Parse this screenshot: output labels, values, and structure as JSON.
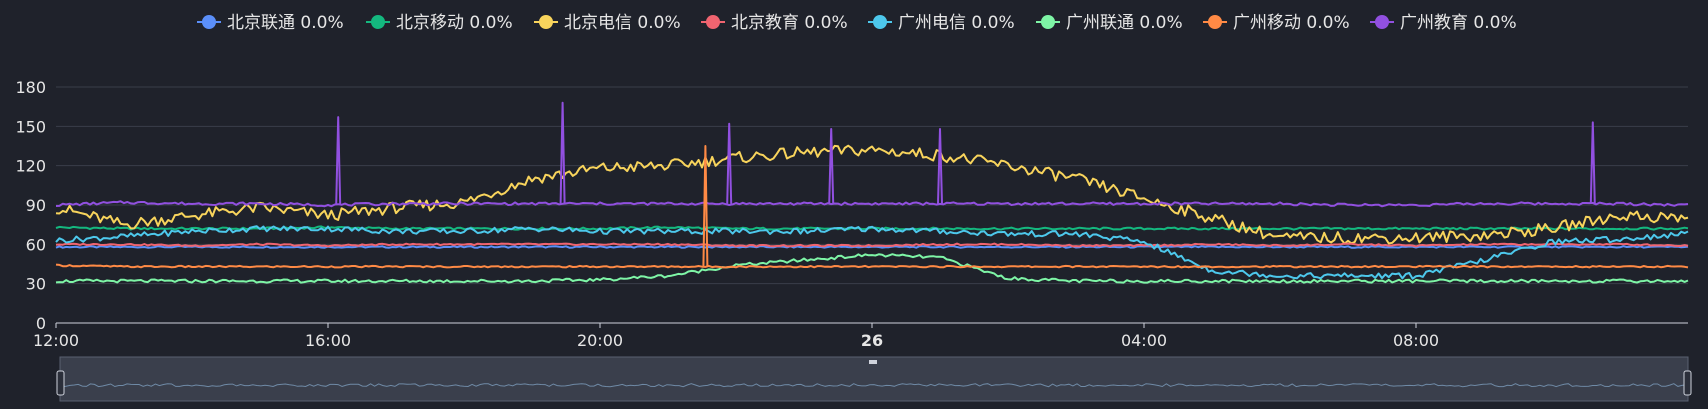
{
  "colors": {
    "background": "#1f222b",
    "grid": "#3a3e4a",
    "slider_bg": "#3a3f4c",
    "slider_line": "#6f8aa6"
  },
  "chart_data": {
    "type": "line",
    "title": "",
    "xlabel": "",
    "ylabel": "",
    "ylim": [
      0,
      180
    ],
    "y_ticks": [
      "0",
      "30",
      "60",
      "90",
      "120",
      "150",
      "180"
    ],
    "x_ticks": [
      "12:00",
      "16:00",
      "20:00",
      "26",
      "04:00",
      "08:00"
    ],
    "x_range_hours": [
      0,
      24
    ],
    "grid": true,
    "legend_position": "top-center",
    "x": [
      0,
      1,
      2,
      3,
      4,
      5,
      6,
      7,
      8,
      9,
      10,
      11,
      12,
      13,
      14,
      15,
      16,
      17,
      18,
      19,
      20,
      21,
      22,
      23,
      24
    ],
    "series": [
      {
        "name": "北京联通 0.0%",
        "color": "#5b8ff9",
        "values": [
          58,
          58,
          58,
          58,
          58,
          58,
          58,
          58,
          58,
          58,
          58,
          58,
          58,
          58,
          58,
          58,
          58,
          58,
          58,
          58,
          58,
          58,
          58,
          58,
          58
        ]
      },
      {
        "name": "北京移动 0.0%",
        "color": "#14b87f",
        "values": [
          73,
          72,
          72,
          72,
          73,
          72,
          72,
          72,
          72,
          73,
          72,
          72,
          72,
          72,
          72,
          72,
          72,
          72,
          72,
          72,
          72,
          72,
          72,
          72,
          72
        ]
      },
      {
        "name": "北京电信 0.0%",
        "color": "#f8d45c",
        "values": [
          88,
          75,
          82,
          88,
          82,
          88,
          92,
          110,
          118,
          120,
          126,
          130,
          132,
          128,
          120,
          110,
          95,
          80,
          65,
          65,
          65,
          67,
          72,
          82,
          80
        ]
      },
      {
        "name": "北京教育 0.0%",
        "color": "#f06470",
        "values": [
          60,
          60,
          59,
          60,
          59,
          60,
          60,
          60,
          60,
          60,
          59,
          59,
          59,
          60,
          60,
          59,
          59,
          60,
          59,
          60,
          59,
          60,
          60,
          60,
          59
        ]
      },
      {
        "name": "广州电信 0.0%",
        "color": "#4dc8ec",
        "values": [
          63,
          66,
          70,
          72,
          72,
          70,
          70,
          72,
          70,
          70,
          70,
          70,
          72,
          70,
          68,
          68,
          62,
          40,
          36,
          36,
          36,
          48,
          62,
          64,
          68
        ]
      },
      {
        "name": "广州联通 0.0%",
        "color": "#7ef5a6",
        "values": [
          32,
          32,
          32,
          32,
          32,
          32,
          32,
          32,
          33,
          36,
          44,
          48,
          52,
          50,
          34,
          32,
          32,
          32,
          32,
          32,
          32,
          32,
          32,
          32,
          32
        ]
      },
      {
        "name": "广州移动 0.0%",
        "color": "#ff8a45",
        "values": [
          44,
          43,
          43,
          43,
          43,
          43,
          43,
          43,
          43,
          43,
          43,
          43,
          43,
          43,
          43,
          43,
          43,
          43,
          43,
          43,
          43,
          43,
          43,
          43,
          43
        ]
      },
      {
        "name": "广州教育 0.0%",
        "color": "#9150e0",
        "values": [
          90,
          92,
          91,
          91,
          90,
          91,
          91,
          91,
          91,
          91,
          91,
          91,
          91,
          91,
          91,
          91,
          91,
          91,
          91,
          90,
          90,
          91,
          91,
          91,
          90
        ]
      }
    ],
    "spikes": [
      {
        "series": "广州教育 0.0%",
        "x": 4.15,
        "y": 157
      },
      {
        "series": "广州教育 0.0%",
        "x": 7.45,
        "y": 168
      },
      {
        "series": "广州教育 0.0%",
        "x": 9.9,
        "y": 152
      },
      {
        "series": "广州教育 0.0%",
        "x": 11.4,
        "y": 148
      },
      {
        "series": "广州教育 0.0%",
        "x": 13.0,
        "y": 148
      },
      {
        "series": "广州教育 0.0%",
        "x": 22.6,
        "y": 153
      },
      {
        "series": "广州移动 0.0%",
        "x": 9.55,
        "y": 135
      }
    ]
  }
}
